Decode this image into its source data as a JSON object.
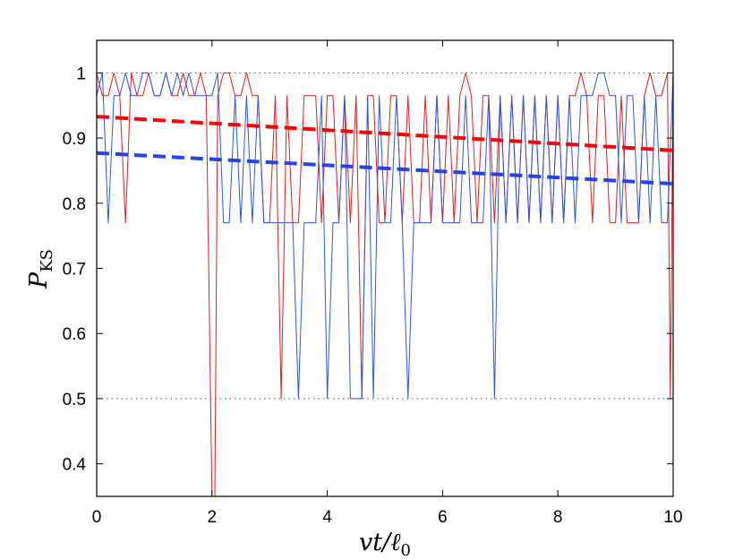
{
  "chart_data": {
    "type": "line",
    "title": "",
    "xlabel": "vt/ℓ0",
    "ylabel": "PKS",
    "xlim": [
      0,
      10
    ],
    "ylim": [
      0.35,
      1.05
    ],
    "xticks": [
      0,
      2,
      4,
      6,
      8,
      10
    ],
    "yticks": [
      0.4,
      0.5,
      0.6,
      0.7,
      0.8,
      0.9,
      1
    ],
    "xtick_labels": [
      "0",
      "2",
      "4",
      "6",
      "8",
      "10"
    ],
    "ytick_labels": [
      "0.4",
      "0.5",
      "0.6",
      "0.7",
      "0.8",
      "0.9",
      "1"
    ],
    "reference_lines": [
      1.0,
      0.5
    ],
    "grid": false,
    "legend": "none",
    "series": [
      {
        "color": "#e41a1c",
        "style": "solid",
        "x": [
          0,
          0.1,
          0.2,
          0.3,
          0.4,
          0.5,
          0.6,
          0.7,
          0.8,
          0.9,
          1.0,
          1.1,
          1.2,
          1.3,
          1.4,
          1.5,
          1.6,
          1.7,
          1.8,
          1.9,
          2.0,
          2.05,
          2.1,
          2.2,
          2.3,
          2.4,
          2.5,
          2.6,
          2.7,
          2.8,
          2.9,
          3.0,
          3.1,
          3.2,
          3.3,
          3.4,
          3.5,
          3.6,
          3.7,
          3.8,
          3.9,
          4.0,
          4.1,
          4.2,
          4.3,
          4.4,
          4.5,
          4.6,
          4.7,
          4.8,
          4.9,
          5.0,
          5.1,
          5.2,
          5.3,
          5.4,
          5.5,
          5.6,
          5.7,
          5.8,
          5.9,
          6.0,
          6.1,
          6.2,
          6.3,
          6.4,
          6.5,
          6.6,
          6.7,
          6.8,
          6.9,
          7.0,
          7.1,
          7.2,
          7.3,
          7.4,
          7.5,
          7.6,
          7.7,
          7.8,
          7.9,
          8.0,
          8.1,
          8.2,
          8.3,
          8.4,
          8.5,
          8.6,
          8.7,
          8.8,
          8.9,
          9.0,
          9.1,
          9.2,
          9.3,
          9.4,
          9.5,
          9.6,
          9.7,
          9.8,
          9.9,
          9.95,
          10.0
        ],
        "values": [
          1.0,
          0.965,
          0.965,
          1.0,
          0.965,
          0.77,
          1.0,
          0.965,
          0.965,
          1.0,
          0.965,
          0.965,
          1.0,
          0.965,
          0.965,
          1.0,
          0.965,
          0.965,
          1.0,
          0.965,
          0.35,
          0.35,
          0.965,
          1.0,
          1.0,
          0.965,
          0.965,
          1.0,
          0.965,
          0.965,
          0.77,
          0.77,
          0.965,
          0.5,
          0.965,
          0.77,
          0.77,
          0.965,
          0.965,
          0.965,
          0.77,
          0.965,
          0.965,
          0.77,
          0.965,
          0.77,
          0.965,
          0.5,
          0.965,
          0.965,
          0.77,
          0.77,
          0.965,
          0.965,
          0.77,
          0.965,
          0.77,
          0.77,
          0.965,
          0.77,
          0.965,
          0.77,
          0.965,
          0.77,
          0.965,
          1.0,
          0.965,
          0.77,
          0.965,
          0.965,
          0.77,
          0.965,
          0.77,
          0.965,
          0.77,
          0.965,
          0.77,
          0.965,
          0.77,
          0.965,
          0.77,
          0.965,
          0.77,
          0.965,
          0.965,
          1.0,
          0.965,
          0.77,
          0.965,
          0.965,
          0.77,
          0.77,
          0.965,
          0.77,
          0.77,
          0.77,
          0.965,
          1.0,
          0.965,
          0.965,
          1.0,
          0.5,
          1.0
        ]
      },
      {
        "color": "#2b55e6",
        "style": "solid",
        "x": [
          0,
          0.1,
          0.2,
          0.3,
          0.4,
          0.5,
          0.6,
          0.7,
          0.8,
          0.9,
          1.0,
          1.1,
          1.2,
          1.3,
          1.4,
          1.5,
          1.6,
          1.7,
          1.8,
          1.9,
          2.0,
          2.1,
          2.2,
          2.3,
          2.4,
          2.5,
          2.6,
          2.7,
          2.8,
          2.9,
          3.0,
          3.1,
          3.2,
          3.3,
          3.4,
          3.5,
          3.6,
          3.7,
          3.8,
          3.9,
          4.0,
          4.1,
          4.2,
          4.3,
          4.4,
          4.5,
          4.6,
          4.7,
          4.8,
          4.9,
          5.0,
          5.1,
          5.2,
          5.3,
          5.4,
          5.5,
          5.6,
          5.7,
          5.8,
          5.9,
          6.0,
          6.1,
          6.2,
          6.3,
          6.4,
          6.5,
          6.6,
          6.7,
          6.8,
          6.9,
          7.0,
          7.1,
          7.2,
          7.3,
          7.4,
          7.5,
          7.6,
          7.7,
          7.8,
          7.9,
          8.0,
          8.1,
          8.2,
          8.3,
          8.4,
          8.5,
          8.6,
          8.7,
          8.8,
          8.9,
          9.0,
          9.1,
          9.2,
          9.3,
          9.4,
          9.5,
          9.6,
          9.7,
          9.8,
          9.9,
          10.0
        ],
        "values": [
          0.965,
          1.0,
          0.77,
          0.965,
          0.965,
          1.0,
          0.965,
          0.965,
          1.0,
          1.0,
          0.965,
          0.965,
          1.0,
          0.965,
          1.0,
          0.965,
          1.0,
          0.965,
          0.965,
          0.965,
          0.965,
          1.0,
          0.77,
          0.77,
          0.965,
          0.77,
          0.965,
          0.77,
          0.965,
          0.77,
          0.77,
          0.77,
          0.77,
          0.77,
          0.77,
          0.5,
          0.77,
          0.77,
          0.77,
          0.965,
          0.5,
          0.77,
          0.77,
          0.965,
          0.5,
          0.5,
          0.5,
          0.965,
          0.5,
          0.965,
          0.77,
          0.77,
          0.965,
          0.77,
          0.5,
          0.77,
          0.77,
          0.77,
          0.77,
          0.965,
          0.77,
          0.77,
          0.77,
          0.77,
          0.965,
          0.77,
          0.77,
          0.77,
          0.965,
          0.5,
          0.965,
          0.77,
          0.965,
          0.77,
          0.965,
          0.77,
          0.965,
          0.77,
          0.965,
          0.77,
          0.965,
          0.77,
          0.965,
          0.77,
          0.965,
          0.965,
          0.965,
          1.0,
          1.0,
          0.965,
          0.965,
          0.77,
          0.965,
          0.965,
          0.77,
          0.965,
          0.77,
          0.965,
          0.77,
          0.77,
          1.0
        ]
      },
      {
        "color": "#ff0000",
        "style": "dashed",
        "x": [
          0,
          10
        ],
        "values": [
          0.933,
          0.881
        ]
      },
      {
        "color": "#2244ee",
        "style": "dashed",
        "x": [
          0,
          10
        ],
        "values": [
          0.877,
          0.83
        ]
      }
    ]
  }
}
